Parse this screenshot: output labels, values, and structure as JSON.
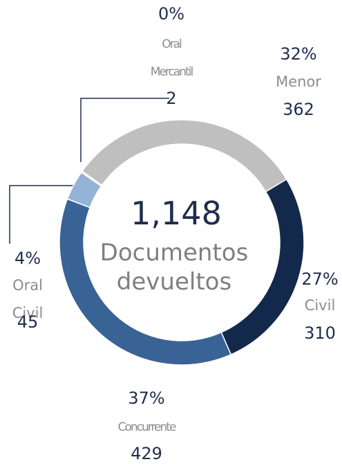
{
  "chart_data": {
    "type": "donut",
    "categories": [
      "Menor",
      "Civil",
      "Concurrente",
      "Oral Civil",
      "Oral Mercantil"
    ],
    "values": [
      362,
      310,
      429,
      45,
      2
    ],
    "percent_labels": [
      "32%",
      "27%",
      "37%",
      "4%",
      "0%"
    ],
    "colors": [
      "#bfbfbf",
      "#13294b",
      "#3a6395",
      "#95b3d7",
      "#dce6f2"
    ],
    "total_label": "1,148",
    "center_label": "Documentos devueltos"
  }
}
